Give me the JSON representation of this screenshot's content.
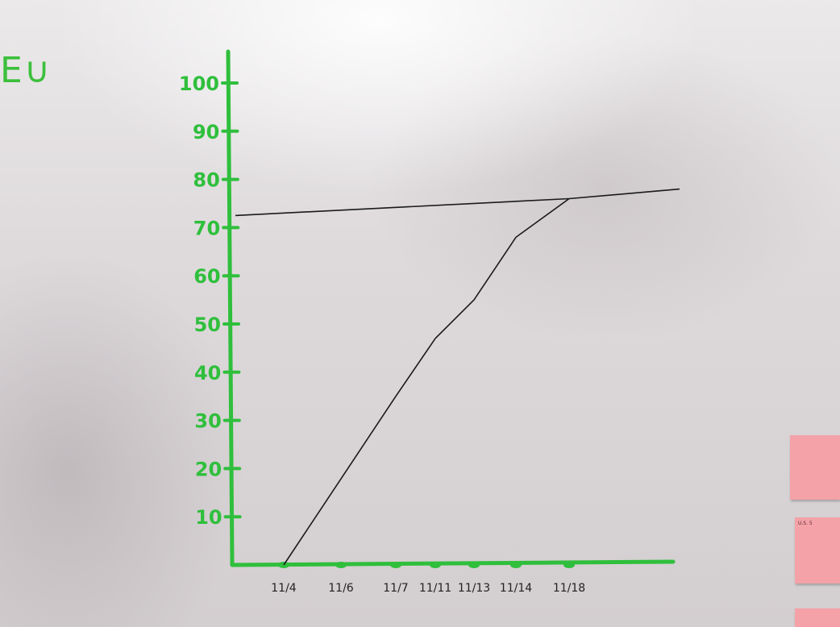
{
  "corner_text": "E∪",
  "sticky_notes": [
    {
      "lines": [
        "",
        "",
        ""
      ]
    },
    {
      "lines": [
        "U.S. 5",
        "",
        ""
      ]
    },
    {
      "lines": [
        ""
      ]
    }
  ],
  "colors": {
    "axis": "#2fbf3c",
    "series": "#1a1a1a"
  },
  "chart_data": {
    "type": "line",
    "title": "",
    "xlabel": "",
    "ylabel": "",
    "ylim": [
      0,
      100
    ],
    "yticks": [
      10,
      20,
      30,
      40,
      50,
      60,
      70,
      80,
      90,
      100
    ],
    "ytick_labels": [
      "10",
      "20",
      "30",
      "40",
      "50",
      "60",
      "70",
      "80",
      "90",
      "100"
    ],
    "xtick_labels": [
      "11/4",
      "11/6",
      "11/7",
      "11/11",
      "11/13",
      "11/14",
      "11/18"
    ],
    "grid": false,
    "series": [
      {
        "name": "",
        "points": [
          {
            "x": "start",
            "y": 72.5
          },
          {
            "x": "11/18",
            "y": 76
          },
          {
            "x": "end",
            "y": 78
          }
        ]
      },
      {
        "name": "",
        "points": [
          {
            "x": "11/4",
            "y": 0
          },
          {
            "x": "11/7",
            "y": 35
          },
          {
            "x": "11/11",
            "y": 47
          },
          {
            "x": "11/13",
            "y": 55
          },
          {
            "x": "11/14",
            "y": 68
          },
          {
            "x": "11/18",
            "y": 76
          }
        ]
      }
    ]
  }
}
